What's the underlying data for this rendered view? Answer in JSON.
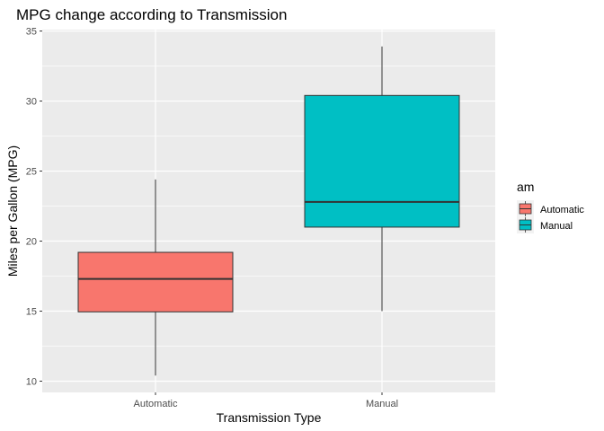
{
  "chart_data": {
    "type": "boxplot",
    "title": "MPG change according to Transmission",
    "xlabel": "Transmission Type",
    "ylabel": "Miles per Gallon (MPG)",
    "ylim": [
      9.2,
      35.1
    ],
    "yticks": [
      10,
      15,
      20,
      25,
      30,
      35
    ],
    "grid": true,
    "legend": {
      "title": "am",
      "placement": "right",
      "entries": [
        "Automatic",
        "Manual"
      ]
    },
    "categories": [
      "Automatic",
      "Manual"
    ],
    "boxes": [
      {
        "name": "Automatic",
        "color": "#F8766D",
        "min": 10.4,
        "q1": 14.95,
        "median": 17.3,
        "q3": 19.2,
        "max": 24.4
      },
      {
        "name": "Manual",
        "color": "#00BFC4",
        "min": 15.0,
        "q1": 21.0,
        "median": 22.8,
        "q3": 30.4,
        "max": 33.9
      }
    ]
  }
}
